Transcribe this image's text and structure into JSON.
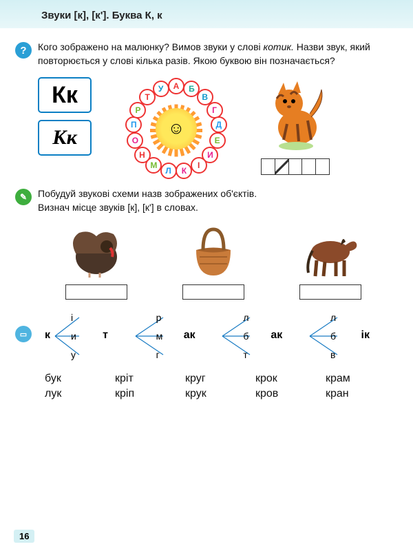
{
  "page_title": "Звуки [к], [к']. Буква К, к",
  "page_number": "16",
  "task1": {
    "text_l1": "Кого зображено на малюнку? Вимов звуки у слові",
    "text_l2_em": "котик.",
    "text_l2_rest": " Назви звук, який повторюється у слові кілька разів. Якою буквою він позначається?"
  },
  "letter_print": "Кк",
  "letter_cursive": "Кк",
  "alphabet_ring": [
    "А",
    "Б",
    "В",
    "Г",
    "Д",
    "Е",
    "И",
    "І",
    "К",
    "Л",
    "М",
    "Н",
    "О",
    "П",
    "Р",
    "Т",
    "У"
  ],
  "alphabet_colors": [
    "#e33",
    "#2a9",
    "#19c",
    "#e91e8f",
    "#29e",
    "#7b3",
    "#e91e8f",
    "#d33",
    "#e91e8f",
    "#29e",
    "#7b3",
    "#e33",
    "#e91e8f",
    "#29e",
    "#7b3",
    "#e33",
    "#19c"
  ],
  "task2": {
    "text_l1": "Побудуй звукові схеми назв зображених об'єктів.",
    "text_l2": "Визнач місце звуків [к], [к'] в словах."
  },
  "objects": [
    "turkey",
    "basket",
    "horse"
  ],
  "syllables": [
    {
      "left": "к",
      "right": "т",
      "opts": [
        "і",
        "и",
        "у"
      ]
    },
    {
      "left": "",
      "right": "ак",
      "opts": [
        "р",
        "м",
        "г"
      ]
    },
    {
      "left": "",
      "right": "ак",
      "opts": [
        "л",
        "б",
        "т"
      ]
    },
    {
      "left": "",
      "right": "ік",
      "opts": [
        "л",
        "б",
        "в"
      ]
    }
  ],
  "words": [
    [
      "бук",
      "кріт",
      "круг",
      "крок",
      "крам"
    ],
    [
      "лук",
      "кріп",
      "крук",
      "кров",
      "кран"
    ]
  ],
  "colors": {
    "header_bg": "#d4f0f4",
    "accent": "#0b7fc4",
    "line": "#1a7cc4"
  }
}
